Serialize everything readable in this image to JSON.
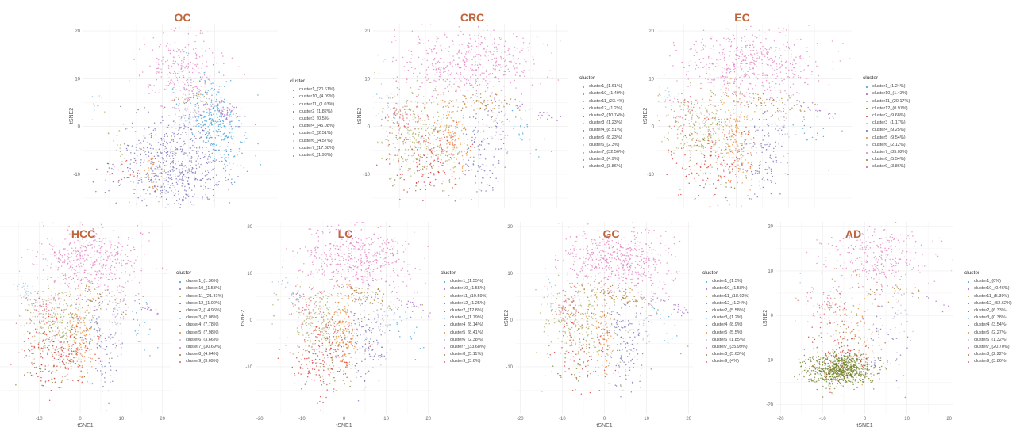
{
  "chart_data": [
    {
      "type": "scatter",
      "title": "OC",
      "xlabel": "",
      "ylabel": "tSNE2",
      "y_ticks": [
        -10,
        0,
        10,
        20
      ],
      "x_ticks": [],
      "xlim": [
        -15,
        22
      ],
      "ylim": [
        -17,
        21.5
      ],
      "grid": true,
      "legend_position": "right",
      "legend_title": "cluster",
      "legend": [
        "cluster1_(20.61%)",
        "cluster10_(4.09%)",
        "cluster11_(1.03%)",
        "cluster2_(1.82%)",
        "cluster3_(0.5%)",
        "cluster4_(45.08%)",
        "cluster5_(2.51%)",
        "cluster6_(4.57%)",
        "cluster7_(17.88%)",
        "cluster8_(1.93%)"
      ],
      "clusters": [
        "cluster1",
        "cluster10",
        "cluster11",
        "cluster2",
        "cluster3",
        "cluster4",
        "cluster5",
        "cluster6",
        "cluster7",
        "cluster8"
      ],
      "percent": [
        20.61,
        4.09,
        1.03,
        1.82,
        0.5,
        45.08,
        2.51,
        4.57,
        17.88,
        1.93
      ]
    },
    {
      "type": "scatter",
      "title": "CRC",
      "xlabel": "",
      "ylabel": "tSNE2",
      "y_ticks": [
        -10,
        0,
        10,
        20
      ],
      "x_ticks": [],
      "xlim": [
        -15,
        22
      ],
      "ylim": [
        -17,
        21.5
      ],
      "grid": true,
      "legend_position": "right",
      "legend_title": "cluster",
      "legend": [
        "cluster1_(1.61%)",
        "cluster10_(1.49%)",
        "cluster11_(23.4%)",
        "cluster12_(1.2%)",
        "cluster2_(10.74%)",
        "cluster3_(1.23%)",
        "cluster4_(8.51%)",
        "cluster5_(8.23%)",
        "cluster6_(2.3%)",
        "cluster7_(32.56%)",
        "cluster8_(4.9%)",
        "cluster9_(3.86%)"
      ],
      "clusters": [
        "cluster1",
        "cluster10",
        "cluster11",
        "cluster12",
        "cluster2",
        "cluster3",
        "cluster4",
        "cluster5",
        "cluster6",
        "cluster7",
        "cluster8",
        "cluster9"
      ],
      "percent": [
        1.61,
        1.49,
        23.4,
        1.2,
        10.74,
        1.23,
        8.51,
        8.23,
        2.3,
        32.56,
        4.9,
        3.86
      ]
    },
    {
      "type": "scatter",
      "title": "EC",
      "xlabel": "",
      "ylabel": "tSNE2",
      "y_ticks": [
        -10,
        0,
        10,
        20
      ],
      "x_ticks": [],
      "xlim": [
        -15,
        22
      ],
      "ylim": [
        -17,
        21.5
      ],
      "grid": true,
      "legend_position": "right",
      "legend_title": "cluster",
      "legend": [
        "cluster1_(1.24%)",
        "cluster10_(1.43%)",
        "cluster11_(20.17%)",
        "cluster12_(0.97%)",
        "cluster2_(9.68%)",
        "cluster3_(1.17%)",
        "cluster4_(9.25%)",
        "cluster5_(9.54%)",
        "cluster6_(2.12%)",
        "cluster7_(35.02%)",
        "cluster8_(5.54%)",
        "cluster9_(3.86%)"
      ],
      "clusters": [
        "cluster1",
        "cluster10",
        "cluster11",
        "cluster12",
        "cluster2",
        "cluster3",
        "cluster4",
        "cluster5",
        "cluster6",
        "cluster7",
        "cluster8",
        "cluster9"
      ],
      "percent": [
        1.24,
        1.43,
        20.17,
        0.97,
        9.68,
        1.17,
        9.25,
        9.54,
        2.12,
        35.02,
        5.54,
        3.86
      ]
    },
    {
      "type": "scatter",
      "title": "HCC",
      "xlabel": "tSNE1",
      "ylabel": "",
      "y_ticks": [],
      "x_ticks": [
        -10,
        0,
        10,
        20
      ],
      "xlim": [
        -19.5,
        22
      ],
      "ylim": [
        -20,
        21
      ],
      "grid": true,
      "legend_position": "right",
      "legend_title": "cluster",
      "legend": [
        "cluster1_(1.36%)",
        "cluster10_(1.53%)",
        "cluster11_(21.81%)",
        "cluster12_(1.02%)",
        "cluster2_(14.96%)",
        "cluster3_(2.08%)",
        "cluster4_(7.78%)",
        "cluster5_(7.98%)",
        "cluster6_(3.66%)",
        "cluster7_(30.69%)",
        "cluster8_(4.04%)",
        "cluster9_(3.69%)"
      ],
      "clusters": [
        "cluster1",
        "cluster10",
        "cluster11",
        "cluster12",
        "cluster2",
        "cluster3",
        "cluster4",
        "cluster5",
        "cluster6",
        "cluster7",
        "cluster8",
        "cluster9"
      ],
      "percent": [
        1.36,
        1.53,
        21.81,
        1.02,
        14.96,
        2.08,
        7.78,
        7.98,
        3.66,
        30.69,
        4.04,
        3.69
      ]
    },
    {
      "type": "scatter",
      "title": "LC",
      "xlabel": "tSNE1",
      "ylabel": "tSNE2",
      "y_ticks": [
        -10,
        0,
        10,
        20
      ],
      "x_ticks": [
        -20,
        -10,
        0,
        10,
        20
      ],
      "xlim": [
        -21,
        21
      ],
      "ylim": [
        -20,
        21
      ],
      "grid": true,
      "legend_position": "right",
      "legend_title": "cluster",
      "legend": [
        "cluster1_(1.55%)",
        "cluster10_(1.55%)",
        "cluster11_(19.59%)",
        "cluster12_(1.25%)",
        "cluster2_(12.8%)",
        "cluster3_(1.79%)",
        "cluster4_(8.14%)",
        "cluster5_(8.41%)",
        "cluster6_(2.38%)",
        "cluster7_(33.68%)",
        "cluster8_(5.11%)",
        "cluster9_(3.6%)"
      ],
      "clusters": [
        "cluster1",
        "cluster10",
        "cluster11",
        "cluster12",
        "cluster2",
        "cluster3",
        "cluster4",
        "cluster5",
        "cluster6",
        "cluster7",
        "cluster8",
        "cluster9"
      ],
      "percent": [
        1.55,
        1.55,
        19.59,
        1.25,
        12.8,
        1.79,
        8.14,
        8.41,
        2.38,
        33.68,
        5.11,
        3.6
      ]
    },
    {
      "type": "scatter",
      "title": "GC",
      "xlabel": "tSNE1",
      "ylabel": "tSNE2",
      "y_ticks": [
        -10,
        0,
        10,
        20
      ],
      "x_ticks": [
        -20,
        -10,
        0,
        10,
        20
      ],
      "xlim": [
        -21,
        21
      ],
      "ylim": [
        -20,
        21
      ],
      "grid": true,
      "legend_position": "right",
      "legend_title": "cluster",
      "legend": [
        "cluster1_(1.5%)",
        "cluster10_(1.58%)",
        "cluster11_(18.02%)",
        "cluster12_(1.24%)",
        "cluster2_(5.58%)",
        "cluster3_(1.2%)",
        "cluster4_(8.9%)",
        "cluster5_(5.5%)",
        "cluster6_(1.85%)",
        "cluster7_(35.99%)",
        "cluster8_(5.63%)",
        "cluster9_(4%)"
      ],
      "clusters": [
        "cluster1",
        "cluster10",
        "cluster11",
        "cluster12",
        "cluster2",
        "cluster3",
        "cluster4",
        "cluster5",
        "cluster6",
        "cluster7",
        "cluster8",
        "cluster9"
      ],
      "percent": [
        1.5,
        1.58,
        18.02,
        1.24,
        5.58,
        1.2,
        8.9,
        5.5,
        1.85,
        35.99,
        5.63,
        4
      ]
    },
    {
      "type": "scatter",
      "title": "AD",
      "xlabel": "tSNE1",
      "ylabel": "tSNE2",
      "y_ticks": [
        -20,
        -10,
        0,
        10,
        20
      ],
      "x_ticks": [
        -20,
        -10,
        0,
        10,
        20
      ],
      "xlim": [
        -21,
        21
      ],
      "ylim": [
        -22,
        21
      ],
      "grid": true,
      "legend_position": "right",
      "legend_title": "cluster",
      "legend": [
        "cluster1_(0%)",
        "cluster10_(0.46%)",
        "cluster11_(5.39%)",
        "cluster12_(52.62%)",
        "cluster2_(6.33%)",
        "cluster3_(0.38%)",
        "cluster4_(3.54%)",
        "cluster5_(2.27%)",
        "cluster6_(1.32%)",
        "cluster7_(20.70%)",
        "cluster8_(2.22%)",
        "cluster9_(3.86%)"
      ],
      "clusters": [
        "cluster1",
        "cluster10",
        "cluster11",
        "cluster12",
        "cluster2",
        "cluster3",
        "cluster4",
        "cluster5",
        "cluster6",
        "cluster7",
        "cluster8",
        "cluster9"
      ],
      "percent": [
        0,
        0.46,
        5.39,
        52.62,
        6.33,
        0.38,
        3.54,
        2.27,
        1.32,
        20.7,
        2.22,
        3.86
      ]
    }
  ],
  "colors": {
    "cluster1": "#2f9bd8",
    "cluster10": "#9b5fc0",
    "cluster11": "#a9aa5c",
    "cluster12": "#6b7a1f",
    "cluster2": "#d42a2a",
    "cluster3": "#8fc3e8",
    "cluster4": "#6c6bb0",
    "cluster5": "#f0832a",
    "cluster6": "#c3b1d8",
    "cluster7": "#e07bbf",
    "cluster8": "#a8782a",
    "cluster9": "#e05a7a"
  },
  "title_color": "#c0643c"
}
